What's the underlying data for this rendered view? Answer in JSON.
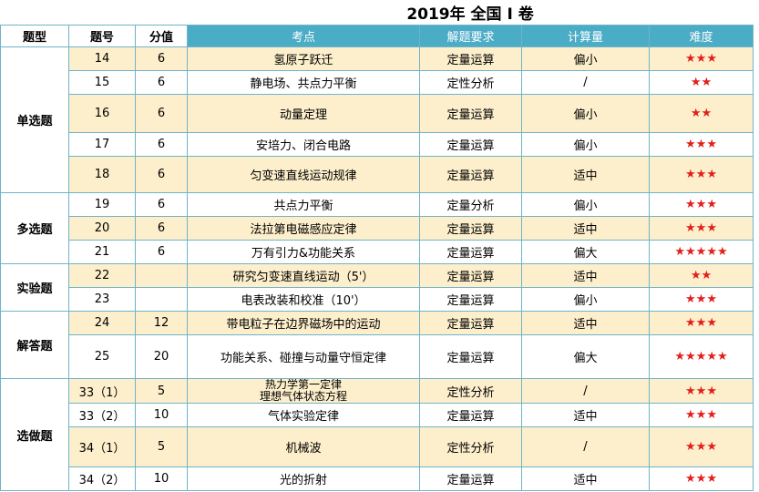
{
  "title": "2019年 全国 I 卷",
  "headers": [
    "题型",
    "题号",
    "分值",
    "考点",
    "解题要求",
    "计算量",
    "难度"
  ],
  "groups": [
    {
      "name": "单选题",
      "rows": [
        [
          "14",
          "6",
          "氢原子跃迁",
          "定量运算",
          "偏小",
          "★★★"
        ],
        [
          "15",
          "6",
          "静电场、共点力平衡",
          "定性分析",
          "/",
          "★★"
        ],
        [
          "16",
          "6",
          "动量定理",
          "定量运算",
          "偏小",
          "★★"
        ],
        [
          "17",
          "6",
          "安培力、闭合电路",
          "定量运算",
          "偏小",
          "★★★"
        ],
        [
          "18",
          "6",
          "匀变速直线运动规律",
          "定量运算",
          "适中",
          "★★★"
        ]
      ]
    },
    {
      "name": "多选题",
      "rows": [
        [
          "19",
          "6",
          "共点力平衡",
          "定量分析",
          "偏小",
          "★★★"
        ],
        [
          "20",
          "6",
          "法拉第电磁感应定律",
          "定量运算",
          "适中",
          "★★★"
        ],
        [
          "21",
          "6",
          "万有引力&功能关系",
          "定量运算",
          "偏大",
          "★★★★★"
        ]
      ]
    },
    {
      "name": "实验题",
      "rows": [
        [
          "22",
          null,
          "研究匀变速直线运动（5'）",
          "定量运算",
          "适中",
          "★★"
        ],
        [
          "23",
          null,
          "电表改装和校准（10'）",
          "定量运算",
          "偏小",
          "★★★"
        ]
      ]
    },
    {
      "name": "解答题",
      "rows": [
        [
          "24",
          "12",
          "带电粒子在边界磁场中的运动",
          "定量运算",
          "适中",
          "★★★"
        ],
        [
          "25",
          "20",
          "功能关系、碰撞与动量守恒定律",
          "定量运算",
          "偏大",
          "★★★★★"
        ]
      ]
    },
    {
      "name": "选做题",
      "rows": [
        [
          "33（1）",
          "5",
          [
            "热力学第一定律",
            "理想气体状态方程"
          ],
          "定性分析",
          "/",
          "★★★"
        ],
        [
          "33（2）",
          "10",
          "气体实验定律",
          "定量运算",
          "适中",
          "★★★"
        ],
        [
          "34（1）",
          "5",
          "机械波",
          "定性分析",
          "/",
          "★★★"
        ],
        [
          "34（2）",
          "10",
          "光的折射",
          "定量运算",
          "适中",
          "★★★"
        ]
      ]
    }
  ]
}
